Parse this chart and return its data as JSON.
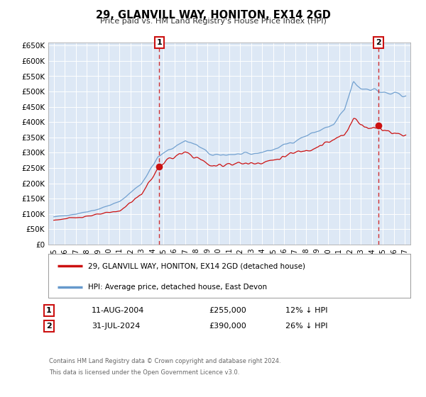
{
  "title": "29, GLANVILL WAY, HONITON, EX14 2GD",
  "subtitle": "Price paid vs. HM Land Registry's House Price Index (HPI)",
  "bg_color": "#ffffff",
  "plot_bg_color": "#dde8f5",
  "grid_color": "#ffffff",
  "hpi_color": "#6699cc",
  "price_color": "#cc1111",
  "marker_color": "#cc1111",
  "dashed_line_color": "#cc1111",
  "ylim": [
    0,
    660000
  ],
  "yticks": [
    0,
    50000,
    100000,
    150000,
    200000,
    250000,
    300000,
    350000,
    400000,
    450000,
    500000,
    550000,
    600000,
    650000
  ],
  "ytick_labels": [
    "£0",
    "£50K",
    "£100K",
    "£150K",
    "£200K",
    "£250K",
    "£300K",
    "£350K",
    "£400K",
    "£450K",
    "£500K",
    "£550K",
    "£600K",
    "£650K"
  ],
  "xlim_start": 1994.5,
  "xlim_end": 2027.5,
  "xticks": [
    1995,
    1996,
    1997,
    1998,
    1999,
    2000,
    2001,
    2002,
    2003,
    2004,
    2005,
    2006,
    2007,
    2008,
    2009,
    2010,
    2011,
    2012,
    2013,
    2014,
    2015,
    2016,
    2017,
    2018,
    2019,
    2020,
    2021,
    2022,
    2023,
    2024,
    2025,
    2026,
    2027
  ],
  "legend_label_red": "29, GLANVILL WAY, HONITON, EX14 2GD (detached house)",
  "legend_label_blue": "HPI: Average price, detached house, East Devon",
  "transaction1_date": "11-AUG-2004",
  "transaction1_price": "£255,000",
  "transaction1_hpi": "12% ↓ HPI",
  "transaction1_year": 2004.62,
  "transaction1_value": 255000,
  "transaction2_date": "31-JUL-2024",
  "transaction2_price": "£390,000",
  "transaction2_hpi": "26% ↓ HPI",
  "transaction2_year": 2024.58,
  "transaction2_value": 390000,
  "footnote1": "Contains HM Land Registry data © Crown copyright and database right 2024.",
  "footnote2": "This data is licensed under the Open Government Licence v3.0."
}
